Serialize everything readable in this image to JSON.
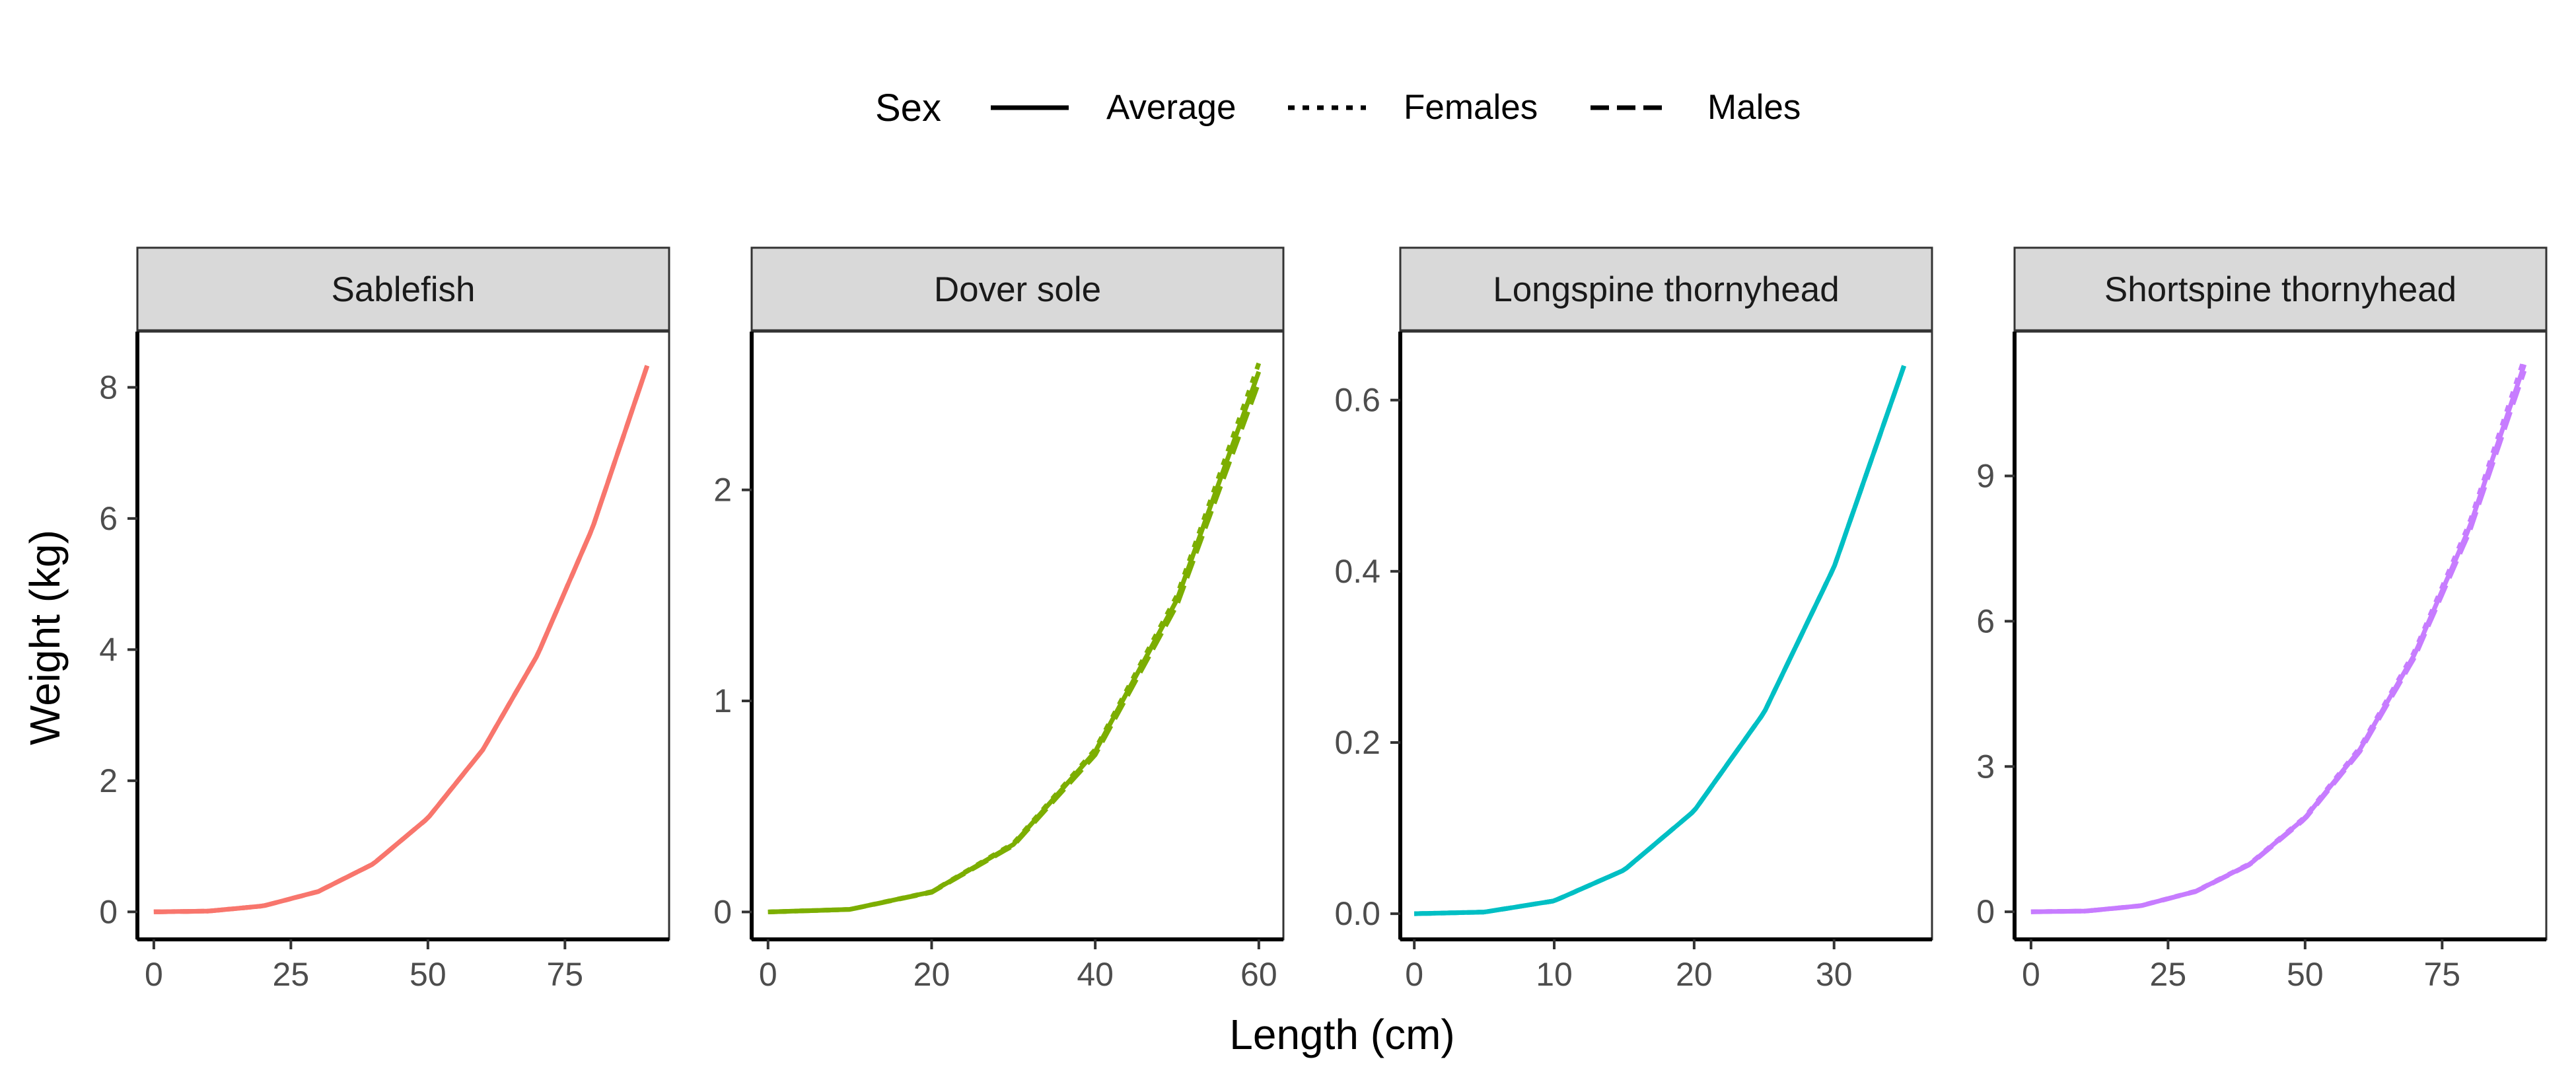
{
  "legend": {
    "title": "Sex",
    "entries": [
      {
        "label": "Average",
        "dash": "solid"
      },
      {
        "label": "Females",
        "dash": "dotted"
      },
      {
        "label": "Males",
        "dash": "dashed"
      }
    ]
  },
  "axes": {
    "xlabel": "Length (cm)",
    "ylabel": "Weight (kg)"
  },
  "chart_data": [
    {
      "type": "line",
      "title": "Sablefish",
      "color": "#F8766D",
      "xlim": [
        -3,
        94
      ],
      "ylim": [
        -0.42,
        8.85
      ],
      "xticks": [
        0,
        25,
        50,
        75
      ],
      "yticks": [
        0,
        2,
        4,
        6,
        8
      ],
      "x_max": 90,
      "series": [
        {
          "name": "Average",
          "x": [
            0,
            10,
            20,
            30,
            40,
            50,
            60,
            70,
            80,
            90
          ],
          "y": [
            0,
            0.011,
            0.091,
            0.31,
            0.73,
            1.43,
            2.47,
            3.92,
            5.85,
            8.33
          ]
        },
        {
          "name": "Females",
          "x": [
            0,
            10,
            20,
            30,
            40,
            50,
            60,
            70,
            80,
            90
          ],
          "y": [
            0,
            0.011,
            0.091,
            0.31,
            0.73,
            1.43,
            2.47,
            3.92,
            5.85,
            8.33
          ]
        },
        {
          "name": "Males",
          "x": [
            0,
            10,
            20,
            30,
            40,
            50,
            60,
            70,
            80,
            90
          ],
          "y": [
            0,
            0.011,
            0.091,
            0.31,
            0.73,
            1.43,
            2.47,
            3.92,
            5.85,
            8.33
          ]
        }
      ]
    },
    {
      "type": "line",
      "title": "Dover sole",
      "color": "#7CAE00",
      "xlim": [
        -2,
        63
      ],
      "ylim": [
        -0.13,
        2.75
      ],
      "xticks": [
        0,
        20,
        40,
        60
      ],
      "yticks": [
        0,
        1,
        2
      ],
      "x_max": 60,
      "series": [
        {
          "name": "Average",
          "x": [
            0,
            10,
            20,
            30,
            40,
            50,
            60
          ],
          "y": [
            0,
            0.012,
            0.095,
            0.32,
            0.76,
            1.48,
            2.56
          ]
        },
        {
          "name": "Females",
          "x": [
            0,
            10,
            20,
            30,
            40,
            50,
            60
          ],
          "y": [
            0,
            0.012,
            0.096,
            0.325,
            0.77,
            1.5,
            2.6
          ]
        },
        {
          "name": "Males",
          "x": [
            0,
            10,
            20,
            30,
            40,
            50,
            60
          ],
          "y": [
            0,
            0.012,
            0.093,
            0.315,
            0.745,
            1.455,
            2.51
          ]
        }
      ]
    },
    {
      "type": "line",
      "title": "Longspine thornyhead",
      "color": "#00BFC4",
      "xlim": [
        -1,
        37
      ],
      "ylim": [
        -0.03,
        0.68
      ],
      "xticks": [
        0,
        10,
        20,
        30
      ],
      "yticks": [
        0.0,
        0.2,
        0.4,
        0.6
      ],
      "ytick_labels": [
        "0.0",
        "0.2",
        "0.4",
        "0.6"
      ],
      "x_max": 35,
      "series": [
        {
          "name": "Average",
          "x": [
            0,
            5,
            10,
            15,
            20,
            25,
            30,
            35
          ],
          "y": [
            0,
            0.0019,
            0.015,
            0.051,
            0.12,
            0.235,
            0.405,
            0.64
          ]
        },
        {
          "name": "Females",
          "x": [
            0,
            5,
            10,
            15,
            20,
            25,
            30,
            35
          ],
          "y": [
            0,
            0.0019,
            0.015,
            0.051,
            0.12,
            0.235,
            0.405,
            0.64
          ]
        },
        {
          "name": "Males",
          "x": [
            0,
            5,
            10,
            15,
            20,
            25,
            30,
            35
          ],
          "y": [
            0,
            0.0019,
            0.015,
            0.051,
            0.12,
            0.235,
            0.405,
            0.64
          ]
        }
      ]
    },
    {
      "type": "line",
      "title": "Shortspine thornyhead",
      "color": "#C77CFF",
      "xlim": [
        -3,
        94
      ],
      "ylim": [
        -0.57,
        11.98
      ],
      "xticks": [
        0,
        25,
        50,
        75
      ],
      "yticks": [
        0,
        3,
        6,
        9
      ],
      "x_max": 90,
      "series": [
        {
          "name": "Average",
          "x": [
            0,
            10,
            20,
            30,
            40,
            50,
            60,
            70,
            80,
            90
          ],
          "y": [
            0,
            0.015,
            0.124,
            0.42,
            0.99,
            1.94,
            3.35,
            5.32,
            7.94,
            11.3
          ]
        },
        {
          "name": "Females",
          "x": [
            0,
            10,
            20,
            30,
            40,
            50,
            60,
            70,
            80,
            90
          ],
          "y": [
            0,
            0.0152,
            0.126,
            0.425,
            1.0,
            1.96,
            3.39,
            5.38,
            8.03,
            11.43
          ]
        },
        {
          "name": "Males",
          "x": [
            0,
            10,
            20,
            30,
            40,
            50,
            60,
            70,
            80,
            90
          ],
          "y": [
            0,
            0.0148,
            0.122,
            0.415,
            0.98,
            1.92,
            3.31,
            5.26,
            7.85,
            11.17
          ]
        }
      ]
    }
  ]
}
